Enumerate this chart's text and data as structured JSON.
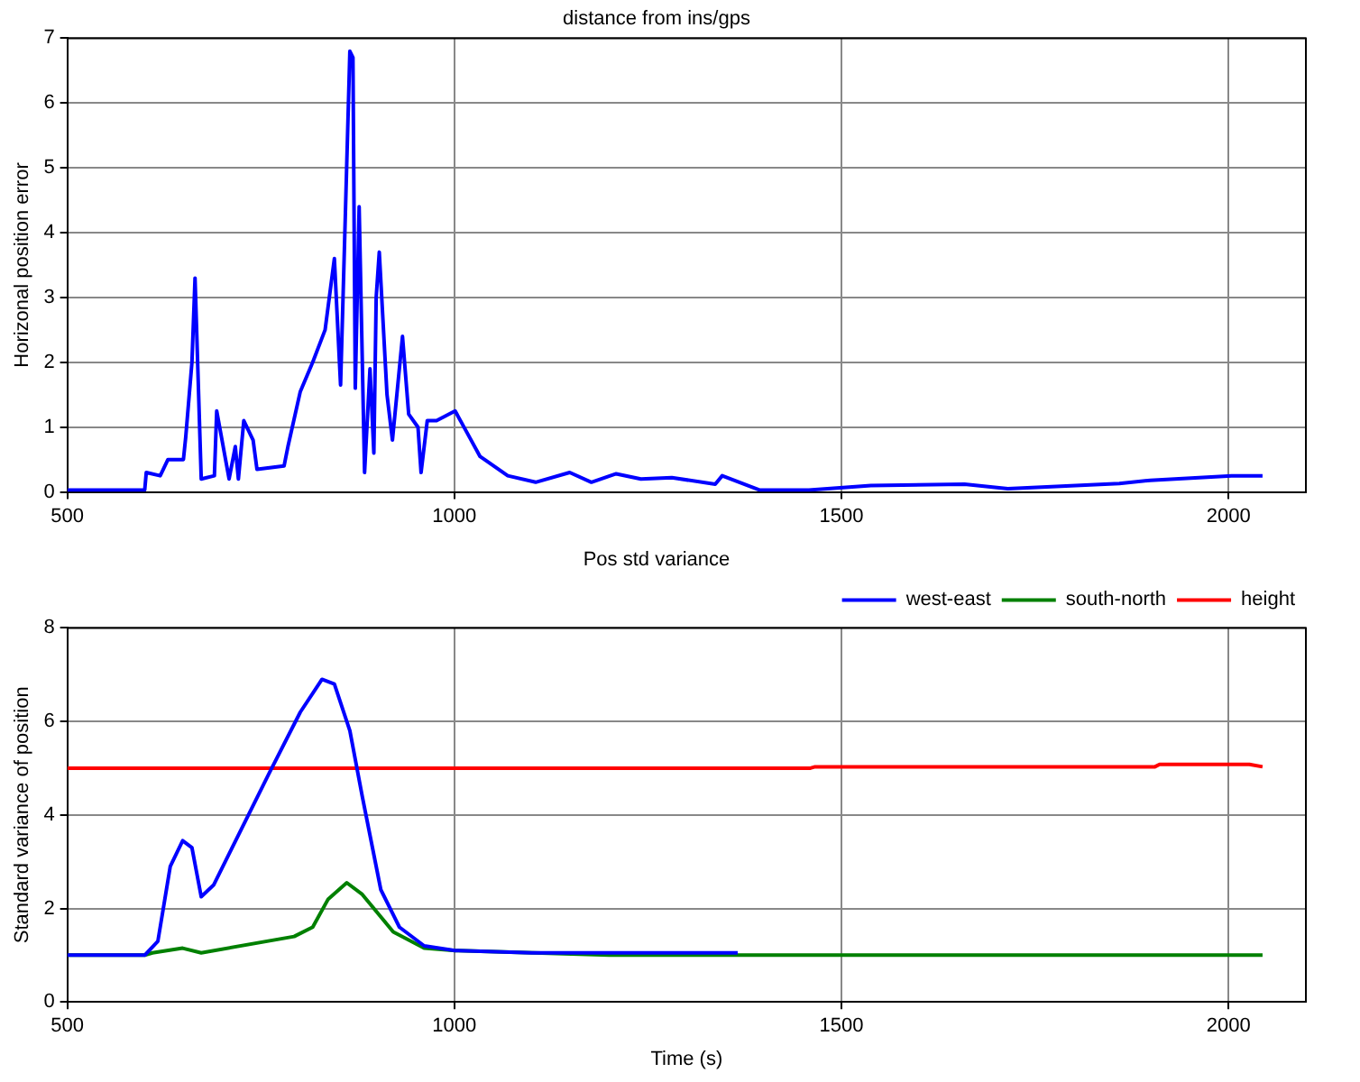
{
  "chart_data": [
    {
      "type": "line",
      "title": "distance from ins/gps",
      "ylabel": "Horizonal position error",
      "xlim": [
        500,
        2100
      ],
      "xticks": [
        500,
        1000,
        1500,
        2000
      ],
      "ylim": [
        0,
        7
      ],
      "yticks": [
        0,
        1,
        2,
        3,
        4,
        5,
        6,
        7
      ],
      "grid": true,
      "legend": false,
      "series": [
        {
          "color": "#0000ff",
          "x": [
            500,
            600,
            602,
            620,
            630,
            650,
            653,
            661,
            665,
            673,
            690,
            693,
            709,
            717,
            721,
            728,
            740,
            745,
            780,
            785,
            801,
            817,
            833,
            845,
            853,
            859,
            865,
            869,
            872,
            877,
            884,
            891,
            896,
            899,
            903,
            913,
            920,
            933,
            941,
            953,
            957,
            965,
            977,
            1001,
            1017,
            1033,
            1069,
            1105,
            1149,
            1177,
            1209,
            1241,
            1281,
            1337,
            1346,
            1394,
            1458,
            1538,
            1659,
            1715,
            1859,
            1899,
            2004,
            2044
          ],
          "values": [
            0.03,
            0.03,
            0.3,
            0.25,
            0.5,
            0.5,
            0.85,
            2.0,
            3.3,
            0.2,
            0.25,
            1.25,
            0.2,
            0.7,
            0.2,
            1.1,
            0.8,
            0.35,
            0.4,
            0.7,
            1.55,
            2.0,
            2.5,
            3.6,
            1.65,
            4.2,
            6.8,
            6.7,
            1.6,
            4.4,
            0.3,
            1.9,
            0.6,
            3.0,
            3.7,
            1.5,
            0.8,
            2.4,
            1.2,
            1.0,
            0.3,
            1.1,
            1.1,
            1.25,
            0.9,
            0.55,
            0.25,
            0.15,
            0.3,
            0.15,
            0.28,
            0.2,
            0.22,
            0.12,
            0.25,
            0.03,
            0.03,
            0.1,
            0.12,
            0.05,
            0.13,
            0.18,
            0.25,
            0.25
          ]
        }
      ]
    },
    {
      "type": "line",
      "title": "Pos std variance",
      "xlabel": "Time (s)",
      "ylabel": "Standard variance of position",
      "xlim": [
        500,
        2100
      ],
      "xticks": [
        500,
        1000,
        1500,
        2000
      ],
      "ylim": [
        0,
        8
      ],
      "yticks": [
        0,
        2,
        4,
        6,
        8
      ],
      "grid": true,
      "legend": "top right",
      "series": [
        {
          "name": "west-east",
          "color": "#0000ff",
          "x": [
            500,
            600,
            617,
            633,
            649,
            661,
            673,
            689,
            761,
            801,
            829,
            845,
            865,
            881,
            905,
            929,
            961,
            1001,
            1100,
            1366
          ],
          "values": [
            1,
            1,
            1.3,
            2.9,
            3.45,
            3.3,
            2.25,
            2.5,
            4.9,
            6.2,
            6.9,
            6.8,
            5.8,
            4.4,
            2.4,
            1.6,
            1.2,
            1.1,
            1.05,
            1.05
          ]
        },
        {
          "name": "south-north",
          "color": "#008000",
          "x": [
            500,
            600,
            610,
            649,
            673,
            793,
            817,
            837,
            861,
            881,
            921,
            961,
            1001,
            1200,
            2044
          ],
          "values": [
            1,
            1,
            1.05,
            1.15,
            1.05,
            1.4,
            1.6,
            2.2,
            2.55,
            2.3,
            1.5,
            1.15,
            1.1,
            1.0,
            1.0
          ]
        },
        {
          "name": "height",
          "color": "#ff0000",
          "x": [
            500,
            1460,
            1466,
            1905,
            1911,
            2027,
            2044
          ],
          "values": [
            5.0,
            5.0,
            5.03,
            5.03,
            5.08,
            5.08,
            5.03
          ]
        }
      ]
    }
  ]
}
